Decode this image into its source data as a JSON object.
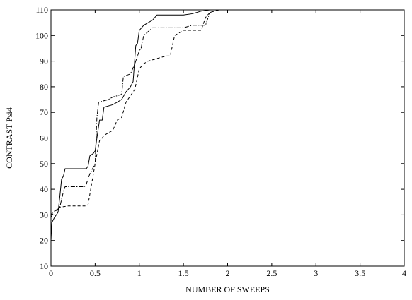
{
  "chart_data": {
    "type": "line",
    "title": "",
    "xlabel": "NUMBER  OF  SWEEPS",
    "ylabel": "CONTRAST  Psi4",
    "xlim": [
      0,
      4
    ],
    "ylim": [
      10,
      110
    ],
    "xticks": [
      0,
      0.5,
      1,
      1.5,
      2,
      2.5,
      3,
      3.5,
      4
    ],
    "xtick_labels": [
      "0",
      "0.5",
      "1",
      "1.5",
      "2",
      "2.5",
      "3",
      "3.5",
      "4"
    ],
    "yticks": [
      10,
      20,
      30,
      40,
      50,
      60,
      70,
      80,
      90,
      100,
      110
    ],
    "ytick_labels": [
      "10",
      "20",
      "30",
      "40",
      "50",
      "60",
      "70",
      "80",
      "90",
      "100",
      "110"
    ],
    "grid": false,
    "legend": "none",
    "series": [
      {
        "style": "solid",
        "points": [
          [
            0,
            20
          ],
          [
            0.01,
            27
          ],
          [
            0.04,
            29
          ],
          [
            0.08,
            31
          ],
          [
            0.1,
            37
          ],
          [
            0.12,
            44
          ],
          [
            0.14,
            45
          ],
          [
            0.16,
            48
          ],
          [
            0.2,
            48
          ],
          [
            0.3,
            48
          ],
          [
            0.4,
            48
          ],
          [
            0.42,
            49
          ],
          [
            0.44,
            53
          ],
          [
            0.48,
            54
          ],
          [
            0.5,
            55
          ],
          [
            0.52,
            60
          ],
          [
            0.55,
            67
          ],
          [
            0.58,
            67
          ],
          [
            0.6,
            72
          ],
          [
            0.7,
            73
          ],
          [
            0.75,
            74
          ],
          [
            0.8,
            75
          ],
          [
            0.85,
            78
          ],
          [
            0.9,
            80
          ],
          [
            0.93,
            82
          ],
          [
            0.96,
            96
          ],
          [
            0.98,
            97
          ],
          [
            1,
            102
          ],
          [
            1.05,
            104
          ],
          [
            1.1,
            105
          ],
          [
            1.15,
            106
          ],
          [
            1.2,
            108
          ],
          [
            1.3,
            108
          ],
          [
            1.5,
            108
          ],
          [
            1.6,
            108.5
          ],
          [
            1.7,
            109.5
          ],
          [
            1.8,
            110
          ],
          [
            2,
            110
          ],
          [
            4,
            110
          ]
        ]
      },
      {
        "style": "dashdot",
        "points": [
          [
            0,
            29
          ],
          [
            0.03,
            31
          ],
          [
            0.07,
            32
          ],
          [
            0.1,
            33
          ],
          [
            0.14,
            39
          ],
          [
            0.16,
            41
          ],
          [
            0.3,
            41
          ],
          [
            0.38,
            41
          ],
          [
            0.4,
            42
          ],
          [
            0.44,
            46
          ],
          [
            0.5,
            50
          ],
          [
            0.52,
            68
          ],
          [
            0.54,
            74
          ],
          [
            0.65,
            75
          ],
          [
            0.7,
            76
          ],
          [
            0.8,
            77
          ],
          [
            0.82,
            84
          ],
          [
            0.9,
            85
          ],
          [
            0.95,
            89
          ],
          [
            1,
            94
          ],
          [
            1.02,
            95
          ],
          [
            1.05,
            100
          ],
          [
            1.15,
            103
          ],
          [
            1.3,
            103
          ],
          [
            1.5,
            103
          ],
          [
            1.6,
            104
          ],
          [
            1.75,
            104
          ],
          [
            1.8,
            109
          ],
          [
            1.9,
            110
          ],
          [
            2,
            110
          ],
          [
            4,
            110
          ]
        ]
      },
      {
        "style": "dashed",
        "points": [
          [
            0,
            30
          ],
          [
            0.02,
            31
          ],
          [
            0.06,
            32
          ],
          [
            0.1,
            33
          ],
          [
            0.2,
            33.5
          ],
          [
            0.3,
            33.5
          ],
          [
            0.4,
            33.5
          ],
          [
            0.42,
            34
          ],
          [
            0.45,
            40
          ],
          [
            0.5,
            50
          ],
          [
            0.55,
            59
          ],
          [
            0.58,
            60
          ],
          [
            0.6,
            61
          ],
          [
            0.7,
            63
          ],
          [
            0.75,
            67
          ],
          [
            0.8,
            68
          ],
          [
            0.85,
            74
          ],
          [
            0.95,
            79
          ],
          [
            1,
            87
          ],
          [
            1.05,
            89
          ],
          [
            1.1,
            90
          ],
          [
            1.2,
            91
          ],
          [
            1.3,
            92
          ],
          [
            1.35,
            92
          ],
          [
            1.4,
            100
          ],
          [
            1.5,
            102
          ],
          [
            1.7,
            102
          ],
          [
            1.75,
            107
          ],
          [
            1.8,
            109
          ],
          [
            1.9,
            110
          ],
          [
            2,
            110
          ],
          [
            4,
            110
          ]
        ]
      }
    ]
  }
}
